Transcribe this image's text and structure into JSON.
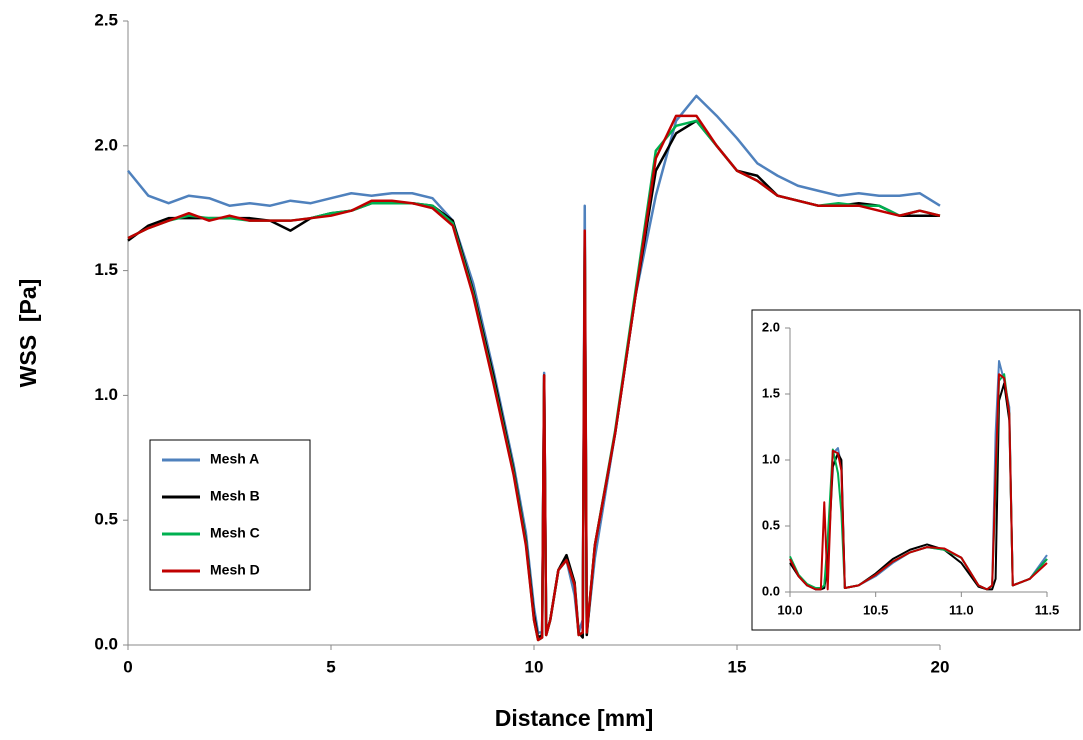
{
  "chart_data": [
    {
      "type": "line",
      "xlabel": "Distance [mm]",
      "ylabel": "WSS  [Pa]",
      "x": [
        0,
        0.5,
        1,
        1.5,
        2,
        2.5,
        3,
        3.5,
        4,
        4.5,
        5,
        5.5,
        6,
        6.5,
        7,
        7.5,
        8,
        8.5,
        9,
        9.5,
        9.8,
        10.0,
        10.1,
        10.2,
        10.25,
        10.3,
        10.4,
        10.6,
        10.8,
        11.0,
        11.1,
        11.2,
        11.25,
        11.3,
        11.5,
        12,
        12.5,
        13,
        13.5,
        14,
        14.5,
        15,
        15.5,
        16,
        16.5,
        17,
        17.5,
        18,
        18.5,
        19,
        19.5,
        20
      ],
      "series": [
        {
          "name": "Mesh A",
          "color": "#4f81bd",
          "values": [
            1.9,
            1.8,
            1.77,
            1.8,
            1.79,
            1.76,
            1.77,
            1.76,
            1.78,
            1.77,
            1.79,
            1.81,
            1.8,
            1.81,
            1.81,
            1.79,
            1.7,
            1.45,
            1.1,
            0.72,
            0.45,
            0.15,
            0.05,
            0.05,
            1.09,
            0.05,
            0.1,
            0.3,
            0.34,
            0.2,
            0.05,
            0.1,
            1.76,
            0.05,
            0.35,
            0.85,
            1.4,
            1.8,
            2.1,
            2.2,
            2.12,
            2.03,
            1.93,
            1.88,
            1.84,
            1.82,
            1.8,
            1.81,
            1.8,
            1.8,
            1.81,
            1.76
          ]
        },
        {
          "name": "Mesh B",
          "color": "#000000",
          "values": [
            1.62,
            1.68,
            1.71,
            1.71,
            1.71,
            1.71,
            1.71,
            1.7,
            1.66,
            1.71,
            1.73,
            1.74,
            1.77,
            1.77,
            1.77,
            1.76,
            1.7,
            1.42,
            1.08,
            0.7,
            0.42,
            0.12,
            0.03,
            0.04,
            1.08,
            0.04,
            0.1,
            0.3,
            0.36,
            0.25,
            0.05,
            0.03,
            1.6,
            0.04,
            0.4,
            0.85,
            1.4,
            1.9,
            2.05,
            2.1,
            2.0,
            1.9,
            1.88,
            1.8,
            1.78,
            1.76,
            1.76,
            1.77,
            1.76,
            1.72,
            1.72,
            1.72
          ]
        },
        {
          "name": "Mesh C",
          "color": "#00b050",
          "values": [
            1.63,
            1.67,
            1.7,
            1.72,
            1.71,
            1.71,
            1.7,
            1.7,
            1.7,
            1.71,
            1.73,
            1.74,
            1.77,
            1.77,
            1.77,
            1.76,
            1.69,
            1.41,
            1.06,
            0.69,
            0.41,
            0.1,
            0.02,
            0.03,
            1.05,
            0.04,
            0.1,
            0.3,
            0.34,
            0.24,
            0.04,
            0.05,
            1.62,
            0.05,
            0.4,
            0.86,
            1.42,
            1.98,
            2.08,
            2.1,
            2.0,
            1.9,
            1.86,
            1.8,
            1.78,
            1.76,
            1.77,
            1.76,
            1.76,
            1.72,
            1.74,
            1.72
          ]
        },
        {
          "name": "Mesh D",
          "color": "#c00000",
          "values": [
            1.63,
            1.67,
            1.7,
            1.73,
            1.7,
            1.72,
            1.7,
            1.7,
            1.7,
            1.71,
            1.72,
            1.74,
            1.78,
            1.78,
            1.77,
            1.75,
            1.68,
            1.4,
            1.05,
            0.68,
            0.4,
            0.1,
            0.02,
            0.03,
            1.08,
            0.04,
            0.1,
            0.3,
            0.34,
            0.24,
            0.04,
            0.05,
            1.66,
            0.05,
            0.4,
            0.85,
            1.4,
            1.95,
            2.12,
            2.12,
            2.0,
            1.9,
            1.86,
            1.8,
            1.78,
            1.76,
            1.76,
            1.76,
            1.74,
            1.72,
            1.74,
            1.72
          ]
        }
      ],
      "xlim": [
        0,
        20
      ],
      "xticks": [
        0,
        5,
        10,
        15,
        20
      ],
      "ylim": [
        0,
        2.5
      ],
      "yticks": [
        {
          "value": 0,
          "label": "0.0"
        },
        0.5,
        {
          "value": 1,
          "label": "1.0"
        },
        1.5,
        {
          "value": 2,
          "label": "2.0"
        },
        2.5
      ],
      "legend": "lower-left"
    },
    {
      "type": "line",
      "x": [
        10.0,
        10.05,
        10.1,
        10.15,
        10.18,
        10.2,
        10.22,
        10.25,
        10.28,
        10.3,
        10.32,
        10.4,
        10.5,
        10.6,
        10.7,
        10.8,
        10.9,
        11.0,
        11.1,
        11.15,
        11.18,
        11.2,
        11.22,
        11.25,
        11.28,
        11.3,
        11.4,
        11.5
      ],
      "series": [
        {
          "color": "#4f81bd",
          "values": [
            0.25,
            0.12,
            0.05,
            0.02,
            0.02,
            0.05,
            0.3,
            1.05,
            1.09,
            0.95,
            0.03,
            0.05,
            0.12,
            0.22,
            0.3,
            0.34,
            0.32,
            0.26,
            0.05,
            0.02,
            0.05,
            1.2,
            1.75,
            1.6,
            1.4,
            0.05,
            0.1,
            0.28
          ]
        },
        {
          "color": "#000000",
          "values": [
            0.22,
            0.12,
            0.05,
            0.02,
            0.02,
            0.03,
            0.2,
            0.95,
            1.05,
            1.0,
            0.03,
            0.05,
            0.14,
            0.25,
            0.32,
            0.36,
            0.32,
            0.22,
            0.04,
            0.02,
            0.02,
            0.1,
            1.45,
            1.58,
            1.3,
            0.05,
            0.1,
            0.25
          ]
        },
        {
          "color": "#00b050",
          "values": [
            0.27,
            0.13,
            0.06,
            0.03,
            0.03,
            0.05,
            0.4,
            1.08,
            0.9,
            0.6,
            0.03,
            0.05,
            0.13,
            0.23,
            0.3,
            0.34,
            0.32,
            0.26,
            0.05,
            0.02,
            0.05,
            0.8,
            1.6,
            1.65,
            1.35,
            0.05,
            0.1,
            0.25
          ]
        },
        {
          "color": "#c00000",
          "values": [
            0.25,
            0.12,
            0.05,
            0.02,
            0.02,
            0.68,
            0.02,
            1.07,
            1.05,
            0.92,
            0.03,
            0.05,
            0.13,
            0.23,
            0.3,
            0.34,
            0.33,
            0.26,
            0.05,
            0.02,
            0.05,
            0.9,
            1.65,
            1.62,
            1.35,
            0.05,
            0.1,
            0.22
          ]
        }
      ],
      "xlim": [
        10,
        11.5
      ],
      "xticks": [
        {
          "value": 10,
          "label": "10.0"
        },
        10.5,
        {
          "value": 11,
          "label": "11.0"
        },
        11.5
      ],
      "ylim": [
        0,
        2
      ],
      "yticks": [
        {
          "value": 0,
          "label": "0.0"
        },
        0.5,
        {
          "value": 1,
          "label": "1.0"
        },
        1.5,
        {
          "value": 2,
          "label": "2.0"
        }
      ]
    }
  ]
}
